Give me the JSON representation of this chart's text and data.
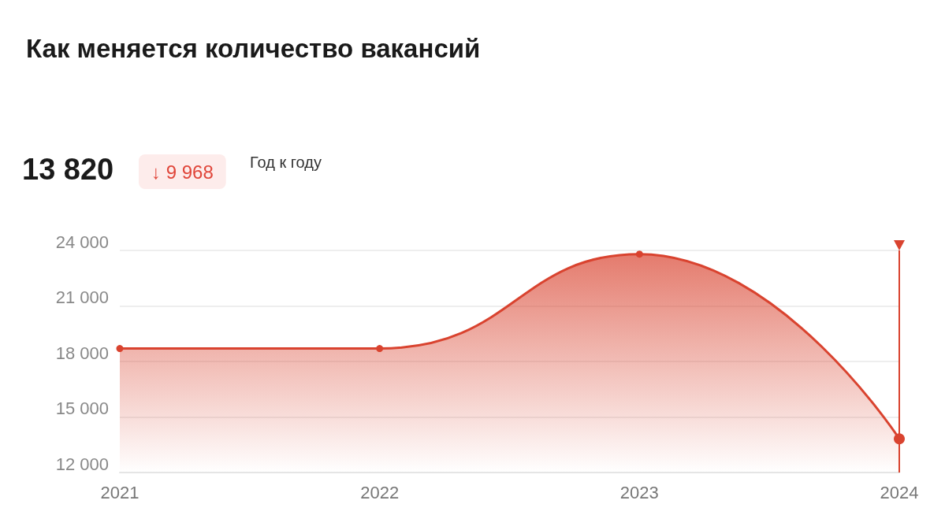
{
  "chart_data": {
    "type": "area",
    "title": "Как меняется количество вакансий",
    "annotations": [
      "13 820",
      "↓ 9 968",
      "Год к году"
    ],
    "categories": [
      "2021",
      "2022",
      "2023",
      "2024"
    ],
    "series": [
      {
        "color": "#d9432f",
        "values": [
          18700,
          18700,
          23800,
          13820
        ]
      }
    ],
    "ylim": [
      12000,
      24000
    ],
    "yticks": [
      {
        "value": 12000,
        "label": "12 000"
      },
      {
        "value": 15000,
        "label": "15 000"
      },
      {
        "value": 18000,
        "label": "18 000"
      },
      {
        "value": 21000,
        "label": "21 000"
      },
      {
        "value": 24000,
        "label": "24 000"
      }
    ],
    "ref_lines": [
      {
        "axis": "x",
        "value": "2024",
        "color": "#d9432f"
      }
    ],
    "grid": "y",
    "marker": "circle"
  }
}
